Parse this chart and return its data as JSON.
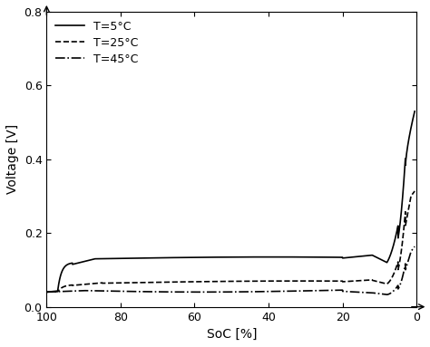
{
  "xlabel": "SoC [%]",
  "ylabel": "Voltage [V]",
  "xlim": [
    100,
    0
  ],
  "ylim": [
    0.0,
    0.8
  ],
  "xticks": [
    100,
    80,
    60,
    40,
    20,
    0
  ],
  "yticks": [
    0.0,
    0.2,
    0.4,
    0.6,
    0.8
  ],
  "legend": [
    "T=5°C",
    "T=25°C",
    "T=45°C"
  ],
  "line_styles": [
    "-",
    "--",
    "-."
  ],
  "line_color": "#000000",
  "line_width": 1.2,
  "legend_loc": "upper left",
  "title_fontsize": 10,
  "tick_fontsize": 9,
  "label_fontsize": 10
}
